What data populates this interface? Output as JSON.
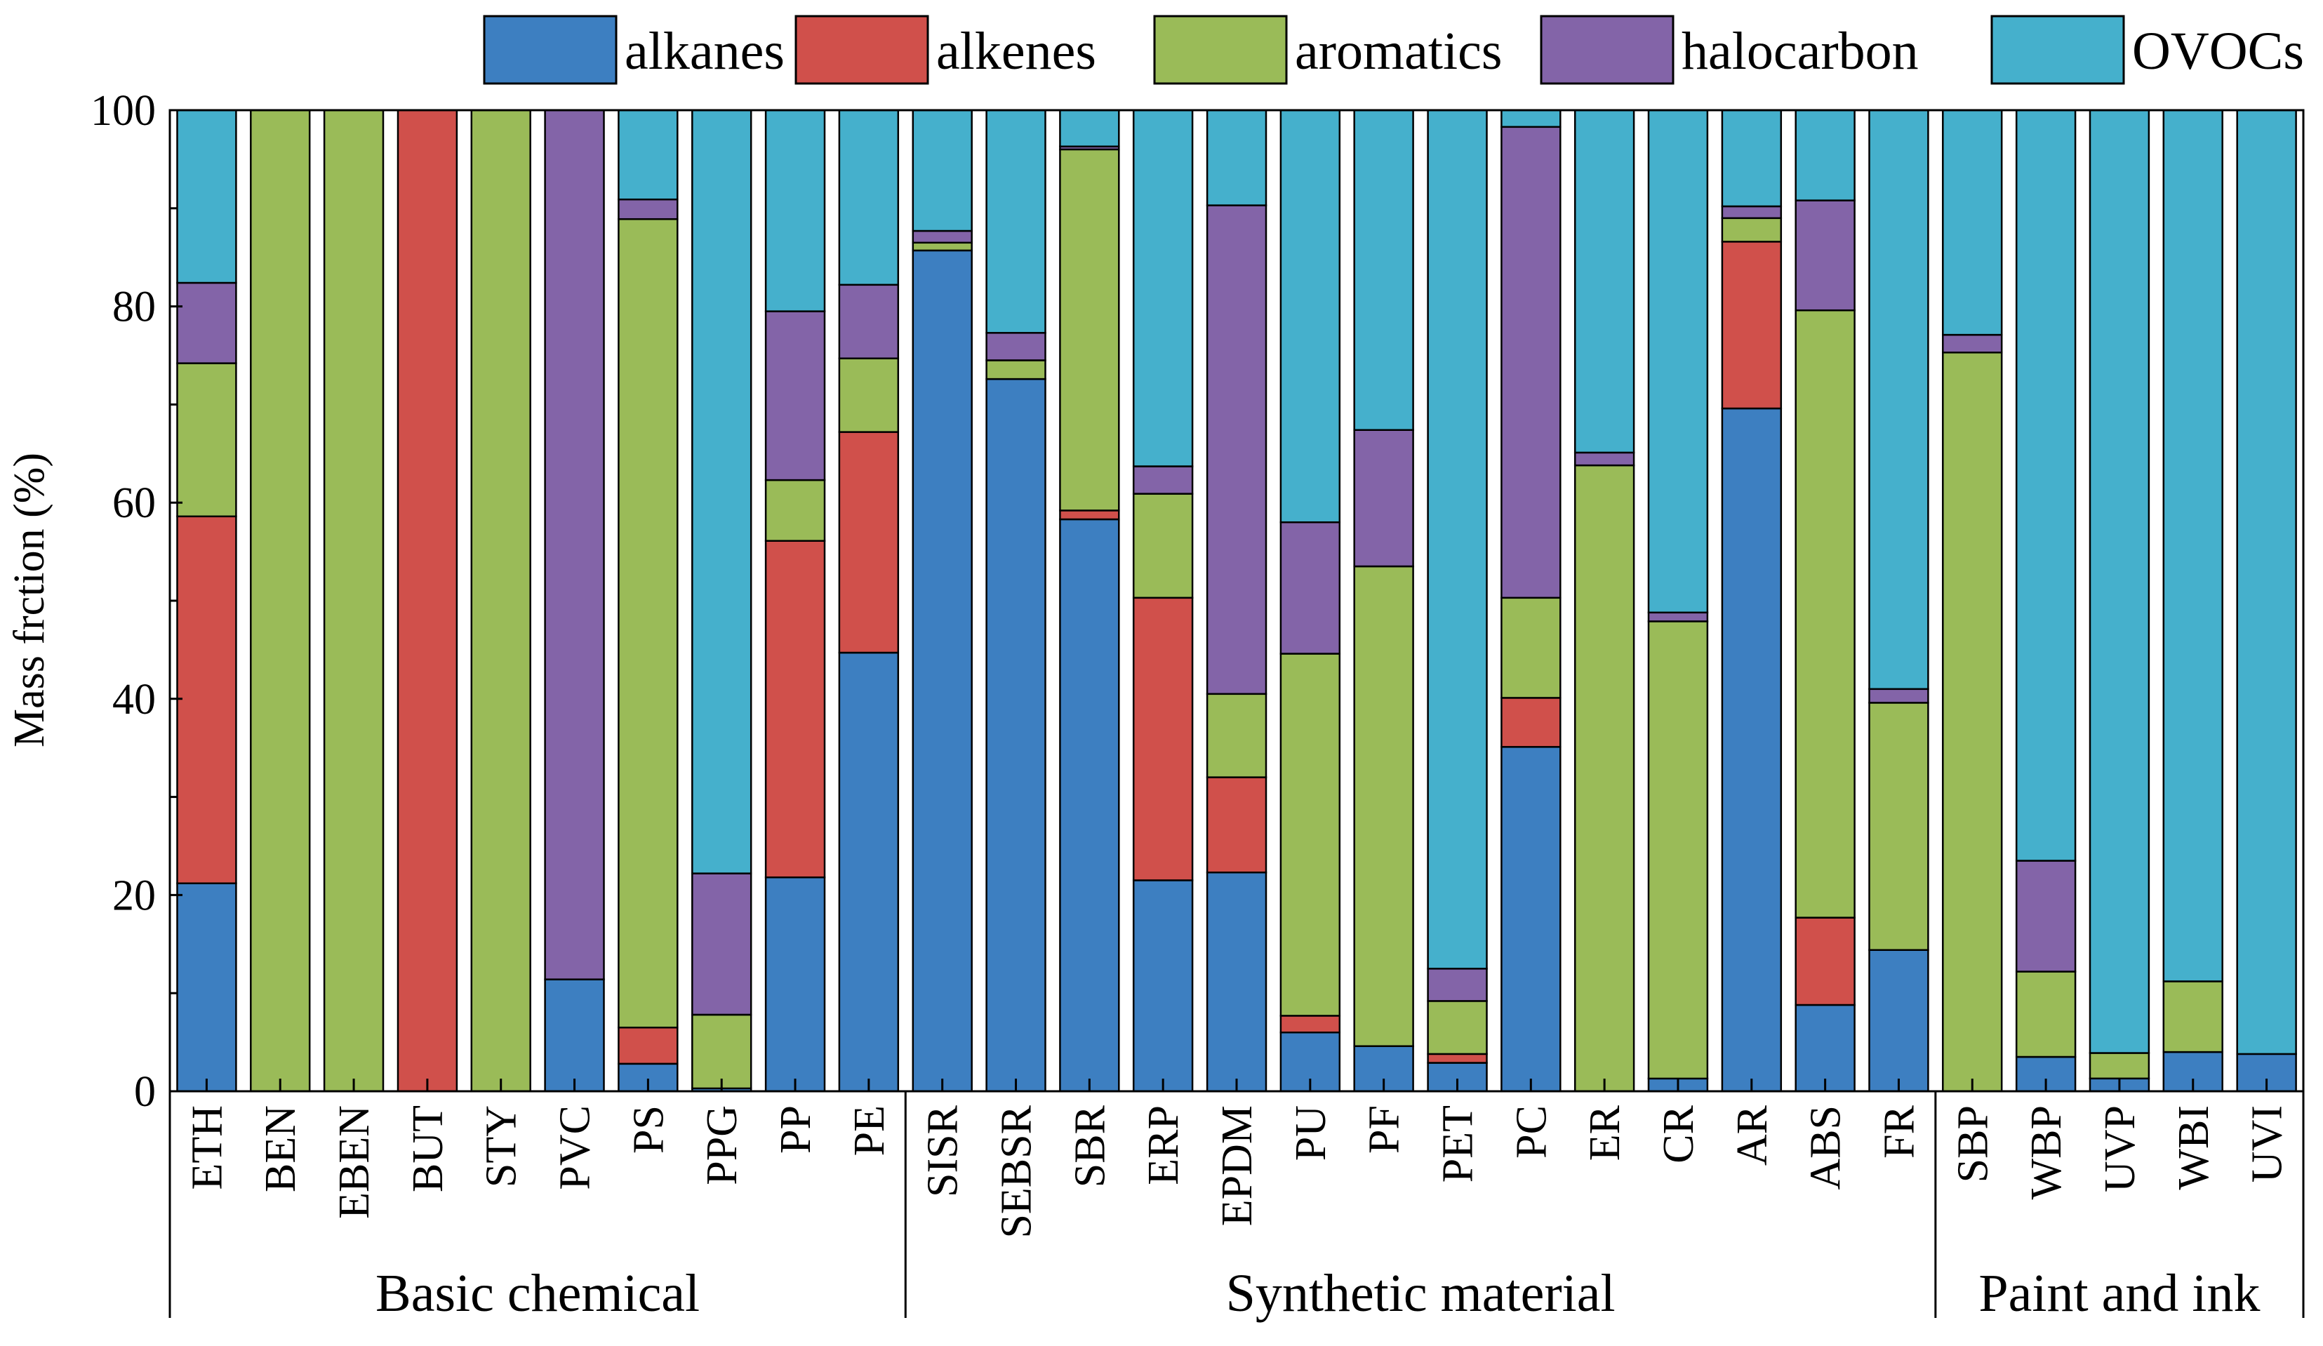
{
  "chart_data": {
    "type": "bar",
    "stacked": true,
    "title": "",
    "xlabel": "",
    "ylabel": "Mass frction (%)",
    "ylim": [
      0,
      100
    ],
    "yticks": [
      "0",
      "20",
      "40",
      "60",
      "80",
      "100"
    ],
    "legend_position": "top",
    "categories": [
      "ETH",
      "BEN",
      "EBEN",
      "BUT",
      "STY",
      "PVC",
      "PS",
      "PPG",
      "PP",
      "PE",
      "SISR",
      "SEBSR",
      "SBR",
      "ERP",
      "EPDM",
      "PU",
      "PF",
      "PET",
      "PC",
      "ER",
      "CR",
      "AR",
      "ABS",
      "FR",
      "SBP",
      "WBP",
      "UVP",
      "WBI",
      "UVI"
    ],
    "groups": [
      {
        "label": "Basic chemical",
        "start": 0,
        "end": 9
      },
      {
        "label": "Synthetic material",
        "start": 10,
        "end": 23
      },
      {
        "label": "Paint and ink",
        "start": 24,
        "end": 28
      }
    ],
    "series": [
      {
        "name": "alkanes",
        "color": "#3d7fc1",
        "values": [
          21.2,
          0,
          0,
          0,
          0,
          11.4,
          2.8,
          0.3,
          21.8,
          44.7,
          85.7,
          72.6,
          58.3,
          21.5,
          22.3,
          6.0,
          4.6,
          2.9,
          35.1,
          0,
          1.3,
          69.6,
          8.8,
          14.4,
          0,
          3.5,
          1.3,
          4.0,
          3.8
        ]
      },
      {
        "name": "alkenes",
        "color": "#d0504b",
        "values": [
          37.4,
          0,
          0,
          100,
          0,
          0,
          3.7,
          0,
          34.3,
          22.5,
          0,
          0,
          0.9,
          28.8,
          9.7,
          1.7,
          0,
          0.9,
          5.0,
          0,
          0,
          17.0,
          8.9,
          0,
          0,
          0,
          0,
          0,
          0
        ]
      },
      {
        "name": "aromatics",
        "color": "#9abb58",
        "values": [
          15.6,
          100,
          100,
          0,
          100,
          0,
          82.4,
          7.5,
          6.2,
          7.5,
          0.8,
          1.9,
          36.8,
          10.6,
          8.5,
          36.9,
          48.9,
          5.4,
          10.2,
          63.8,
          46.6,
          2.4,
          61.9,
          25.2,
          75.3,
          8.7,
          2.6,
          7.2,
          0
        ]
      },
      {
        "name": "halocarbon",
        "color": "#8364a8",
        "values": [
          8.2,
          0,
          0,
          0,
          0,
          88.6,
          2.0,
          14.4,
          17.2,
          7.5,
          1.2,
          2.8,
          0.3,
          2.8,
          49.8,
          13.4,
          13.9,
          3.3,
          48.0,
          1.3,
          0.9,
          1.2,
          11.2,
          1.4,
          1.8,
          11.3,
          0,
          0,
          0
        ]
      },
      {
        "name": "OVOCs",
        "color": "#45b0cc",
        "values": [
          17.6,
          0,
          0,
          0,
          0,
          0,
          9.1,
          77.8,
          20.5,
          17.8,
          12.3,
          22.7,
          3.7,
          36.3,
          9.7,
          42.0,
          32.6,
          87.5,
          1.7,
          34.9,
          51.2,
          9.8,
          9.2,
          59.0,
          22.9,
          76.5,
          96.1,
          88.8,
          96.2
        ]
      }
    ]
  }
}
